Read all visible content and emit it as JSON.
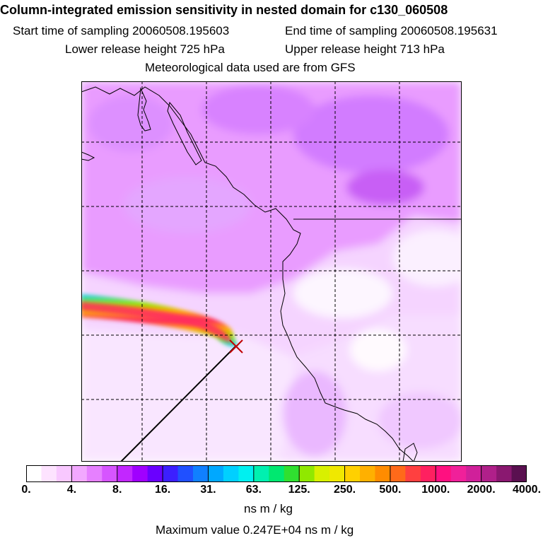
{
  "header": {
    "title": "Column-integrated emission sensitivity in nested domain for c130_060508",
    "start_time": "Start time of sampling 20060508.195603",
    "end_time": "End time of sampling 20060508.195631",
    "lower_release": "Lower release height  725 hPa",
    "upper_release": "Upper release height  713 hPa",
    "met_data": "Meteorological data used are from GFS"
  },
  "colorbar": {
    "tick_labels": [
      "0.",
      "4.",
      "8.",
      "16.",
      "31.",
      "63.",
      "125.",
      "250.",
      "500.",
      "1000.",
      "2000.",
      "4000."
    ],
    "colors": [
      "#ffffff",
      "#fde3ff",
      "#f8c8ff",
      "#f2a8ff",
      "#e680ff",
      "#d655ff",
      "#c227ff",
      "#a000ff",
      "#6a00ff",
      "#3c1fff",
      "#2050ff",
      "#1080ff",
      "#00a8ff",
      "#00d0ff",
      "#00f0f0",
      "#00f0b0",
      "#00e870",
      "#30e030",
      "#90e800",
      "#d8f000",
      "#f0e800",
      "#ffd000",
      "#ffb000",
      "#ff8c00",
      "#ff6a1a",
      "#ff4040",
      "#ff2060",
      "#ff1080",
      "#f0209a",
      "#d0209a",
      "#b0208a",
      "#8a1870",
      "#5a1050"
    ],
    "units": "ns m / kg",
    "max_value": "Maximum value  0.247E+04 ns m / kg"
  },
  "map": {
    "release_marker": "release-point"
  }
}
